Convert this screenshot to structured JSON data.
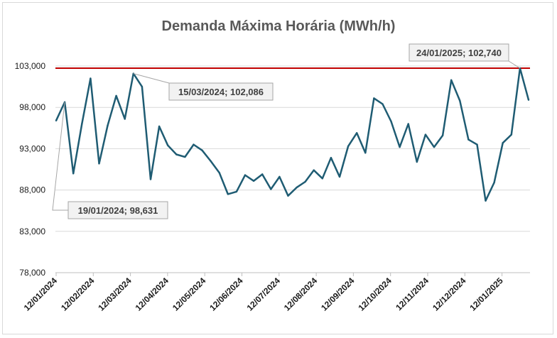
{
  "chart_data": {
    "type": "line",
    "title": "Demanda Máxima Horária (MWh/h)",
    "xlabel": "",
    "ylabel": "",
    "ylim": [
      78000,
      103000
    ],
    "yticks": [
      "78,000",
      "83,000",
      "88,000",
      "93,000",
      "98,000",
      "103,000"
    ],
    "ytick_values": [
      78000,
      83000,
      88000,
      93000,
      98000,
      103000
    ],
    "xticks": [
      "12/01/2024",
      "12/02/2024",
      "12/03/2024",
      "12/04/2024",
      "12/05/2024",
      "12/06/2024",
      "12/07/2024",
      "12/08/2024",
      "12/09/2024",
      "12/10/2024",
      "12/11/2024",
      "12/12/2024",
      "12/01/2025"
    ],
    "grid": true,
    "series": [
      {
        "color": "#1f5c73",
        "values": [
          96400,
          98631,
          90000,
          96000,
          101500,
          91200,
          95800,
          99400,
          96600,
          102086,
          100500,
          89300,
          95700,
          93400,
          92300,
          92000,
          93500,
          92800,
          91500,
          90100,
          87500,
          87800,
          89800,
          89100,
          89900,
          88100,
          89600,
          87300,
          88300,
          89000,
          90400,
          89400,
          91900,
          89600,
          93300,
          94900,
          92500,
          99100,
          98400,
          96300,
          93200,
          96000,
          91400,
          94700,
          93200,
          94600,
          101300,
          98800,
          94100,
          93500,
          86700,
          88900,
          93700,
          94700,
          102740,
          98900
        ]
      }
    ],
    "reference_line": {
      "value": 102740,
      "color": "#c00000"
    },
    "annotations": [
      {
        "text": "15/03/2024; 102,086",
        "index": 9
      },
      {
        "text": "19/01/2024; 98,631",
        "index": 1
      },
      {
        "text": "24/01/2025; 102,740",
        "index": 54
      }
    ]
  }
}
